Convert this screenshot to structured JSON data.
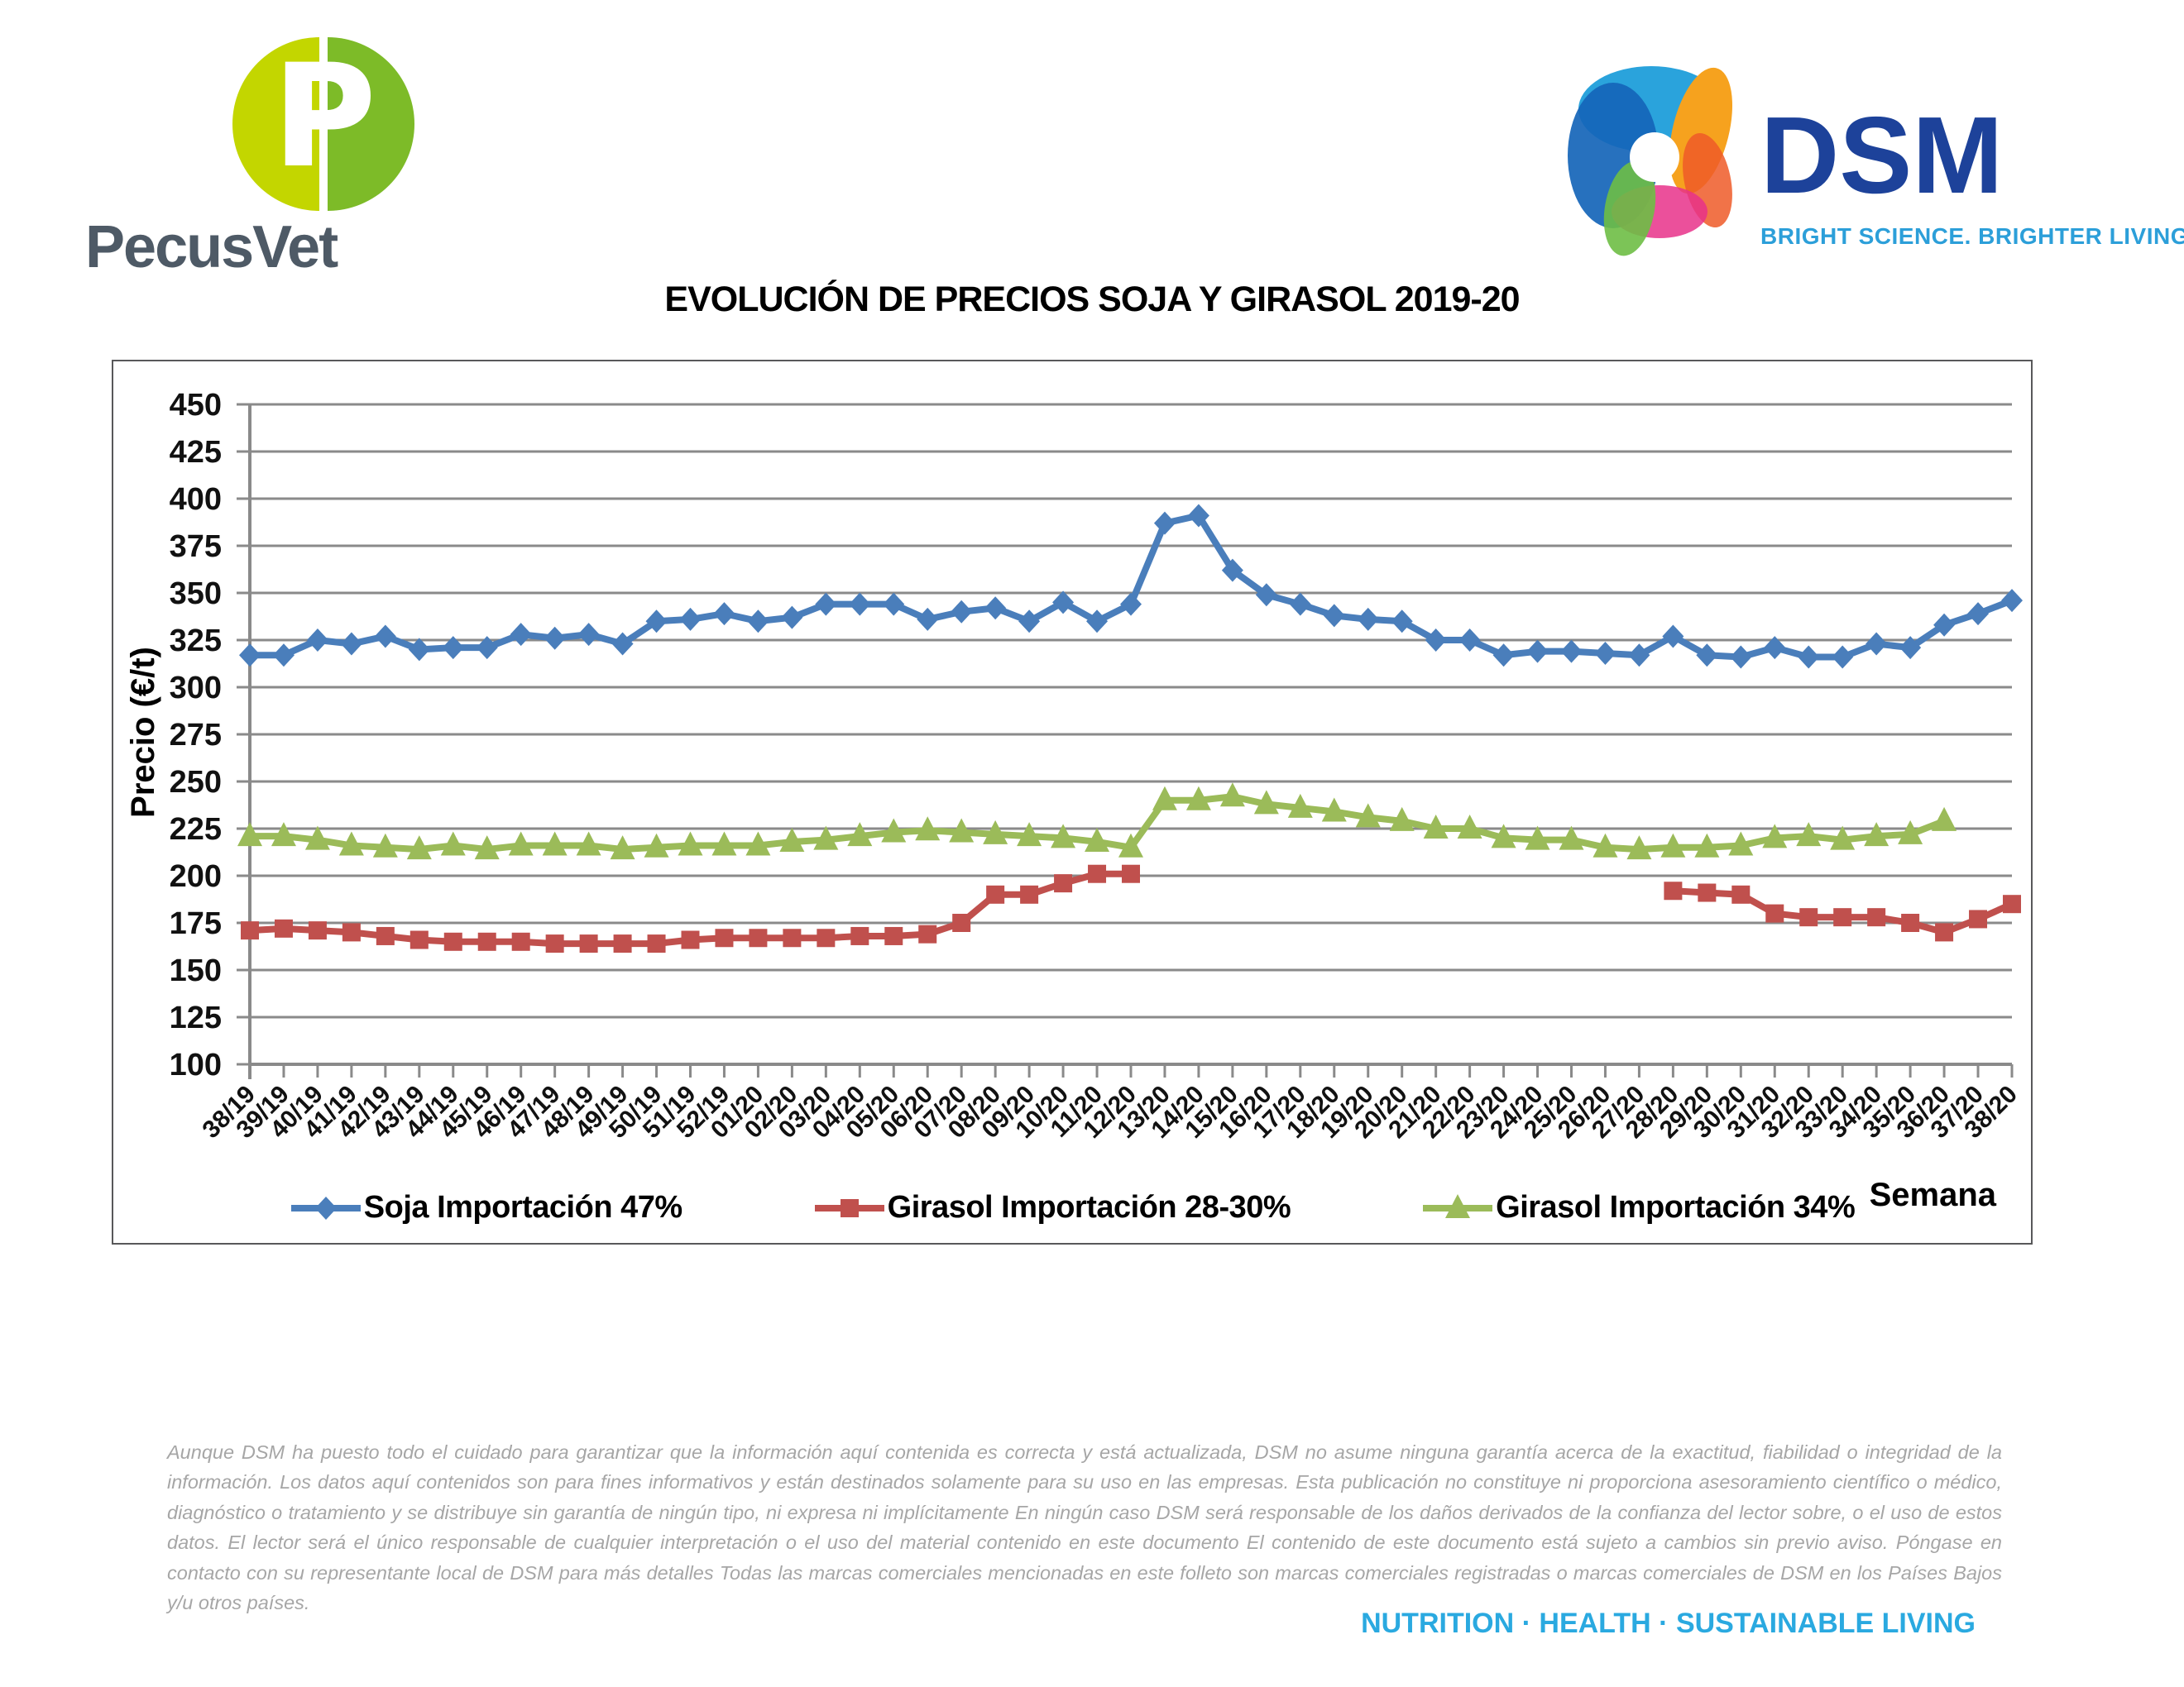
{
  "header": {
    "pecusvet": {
      "name": "PecusVet",
      "monogram": "P"
    },
    "dsm": {
      "name": "DSM",
      "tagline": "BRIGHT SCIENCE. BRIGHTER LIVING."
    }
  },
  "title": "EVOLUCIÓN DE PRECIOS SOJA Y GIRASOL 2019-20",
  "chart_data": {
    "type": "line",
    "title": "EVOLUCIÓN DE PRECIOS SOJA Y GIRASOL 2019-20",
    "xlabel": "Semana",
    "ylabel": "Precio (€/t)",
    "ylim": [
      100,
      450
    ],
    "ytick_step": 25,
    "grid": true,
    "legend_position": "bottom",
    "colors": {
      "grid": "#8a8a8a",
      "axis": "#8a8a8a",
      "text": "#111111"
    },
    "categories": [
      "38/19",
      "39/19",
      "40/19",
      "41/19",
      "42/19",
      "43/19",
      "44/19",
      "45/19",
      "46/19",
      "47/19",
      "48/19",
      "49/19",
      "50/19",
      "51/19",
      "52/19",
      "01/20",
      "02/20",
      "03/20",
      "04/20",
      "05/20",
      "06/20",
      "07/20",
      "08/20",
      "09/20",
      "10/20",
      "11/20",
      "12/20",
      "13/20",
      "14/20",
      "15/20",
      "16/20",
      "17/20",
      "18/20",
      "19/20",
      "20/20",
      "21/20",
      "22/20",
      "23/20",
      "24/20",
      "25/20",
      "26/20",
      "27/20",
      "28/20",
      "29/20",
      "30/20",
      "31/20",
      "32/20",
      "33/20",
      "34/20",
      "35/20",
      "36/20",
      "37/20",
      "38/20"
    ],
    "series": [
      {
        "name": "Soja Importación 47%",
        "color": "#4A7EBB",
        "marker": "diamond",
        "values": [
          317,
          317,
          325,
          323,
          327,
          320,
          321,
          321,
          328,
          326,
          328,
          323,
          335,
          336,
          339,
          335,
          337,
          344,
          344,
          344,
          336,
          340,
          342,
          335,
          345,
          335,
          344,
          387,
          391,
          362,
          349,
          344,
          338,
          336,
          335,
          325,
          325,
          317,
          319,
          319,
          318,
          317,
          327,
          317,
          316,
          321,
          316,
          316,
          323,
          321,
          333,
          339,
          346
        ]
      },
      {
        "name": "Girasol Importación 28-30%",
        "color": "#C0504D",
        "marker": "square",
        "values": [
          171,
          172,
          171,
          170,
          168,
          166,
          165,
          165,
          165,
          164,
          164,
          164,
          164,
          166,
          167,
          167,
          167,
          167,
          168,
          168,
          169,
          175,
          190,
          190,
          196,
          201,
          201,
          null,
          null,
          null,
          null,
          null,
          null,
          null,
          null,
          null,
          null,
          null,
          null,
          null,
          null,
          null,
          192,
          191,
          190,
          180,
          178,
          178,
          178,
          175,
          170,
          177,
          185
        ]
      },
      {
        "name": "Girasol Importación 34%",
        "color": "#9BBB59",
        "marker": "triangle",
        "values": [
          221,
          221,
          219,
          216,
          215,
          214,
          216,
          214,
          216,
          216,
          216,
          214,
          215,
          216,
          216,
          216,
          218,
          219,
          221,
          223,
          224,
          223,
          222,
          221,
          220,
          218,
          215,
          240,
          240,
          242,
          238,
          236,
          234,
          231,
          229,
          225,
          225,
          220,
          219,
          219,
          215,
          214,
          215,
          215,
          216,
          220,
          221,
          219,
          221,
          222,
          229,
          null,
          null
        ]
      }
    ]
  },
  "footer": {
    "disclaimer": "Aunque DSM ha puesto todo el cuidado para garantizar que la información aquí contenida es correcta y está actualizada, DSM no asume ninguna garantía acerca de la exactitud, fiabilidad o integridad de la información. Los datos aquí contenidos son para fines informativos y están destinados solamente para su uso en las empresas. Esta publicación no constituye ni proporciona asesoramiento científico o médico, diagnóstico o tratamiento y se distribuye sin garantía de ningún tipo, ni expresa ni implícitamente En ningún caso DSM será responsable de los daños derivados de la confianza del lector sobre, o el uso de estos datos. El lector será el único responsable de cualquier interpretación o el uso del material contenido en este documento El contenido de este documento está sujeto a cambios sin previo aviso. Póngase en contacto con su representante local de DSM para más detalles Todas las marcas comerciales mencionadas en este folleto son marcas comerciales registradas o marcas comerciales de DSM en los Países Bajos y/u otros países.",
    "tagline": "NUTRITION · HEALTH · SUSTAINABLE LIVING"
  }
}
